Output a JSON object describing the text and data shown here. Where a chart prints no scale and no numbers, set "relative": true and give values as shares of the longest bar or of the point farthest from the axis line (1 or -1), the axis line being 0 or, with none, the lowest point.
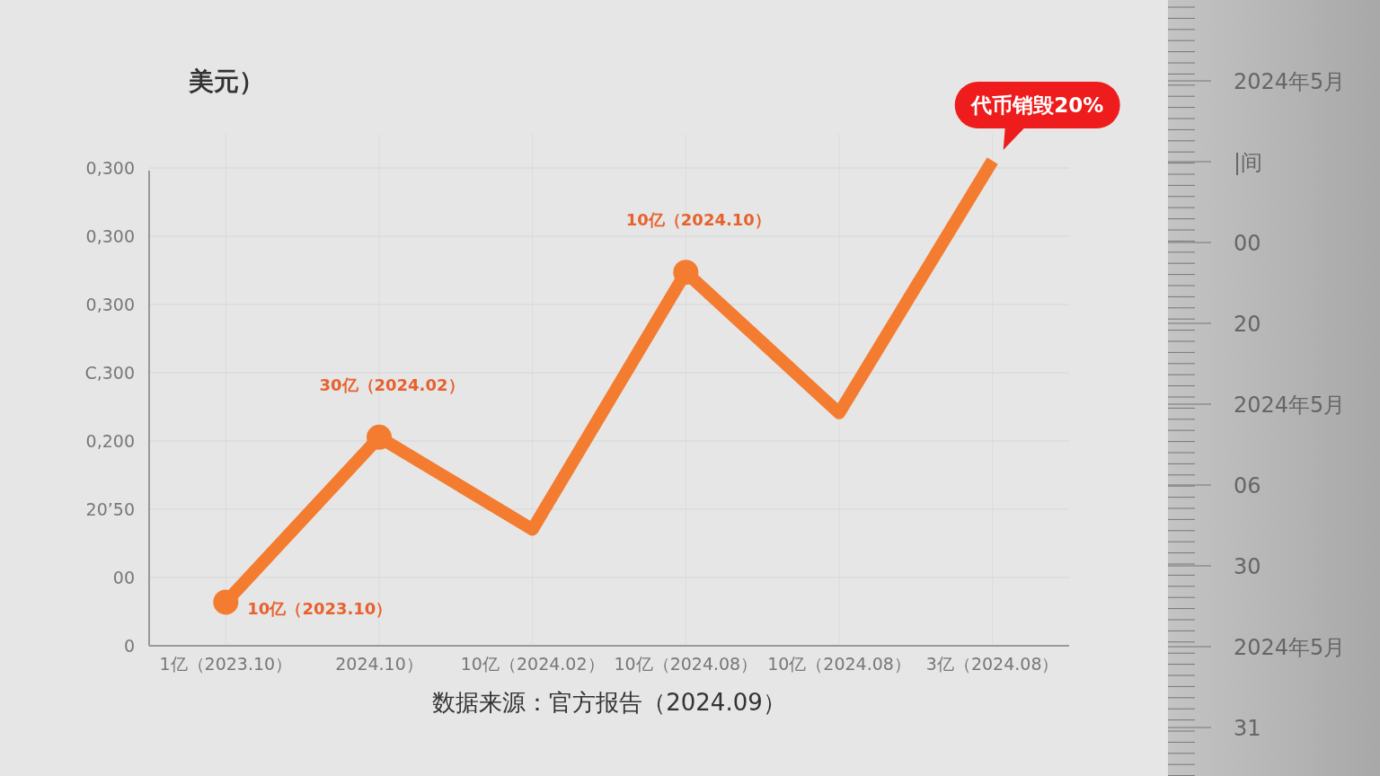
{
  "chart_data": {
    "type": "line",
    "title": "美元）",
    "relative": true,
    "categories": [
      "1亿（2023.10）",
      "2024.10）",
      "10亿（2024.02）",
      "10亿（2024.08）",
      "10亿（2024.08）",
      "3亿（2024.08）"
    ],
    "grid": true,
    "series": [
      {
        "color": "#f47c30",
        "values": [
          0.09,
          0.43,
          0.24,
          0.77,
          0.48,
          1
        ]
      },
      {
        "type": "scatter",
        "color": "#f47c30",
        "marker": "circle",
        "values": [
          0.09,
          0.43,
          null,
          0.77,
          null,
          null
        ]
      }
    ],
    "annotations": [
      {
        "text": "10亿（2023.10）",
        "x": "1亿（2023.10）",
        "y": 0.09
      },
      {
        "text": "30亿（2024.02）",
        "x": "2024.10）",
        "y": 0.43
      },
      {
        "text": "10亿（2024.10）",
        "x": "10亿（2024.08）",
        "y": 0.77
      },
      {
        "text": "代币销毁20%",
        "x": "3亿（2024.08）",
        "y": 1
      },
      "数据来源：官方报告（2024.09）",
      "0",
      "00",
      "20’50",
      "0,200",
      "C,300",
      "0,300",
      "0,300",
      "0,300",
      "2024年5月",
      "|间",
      "00",
      "20",
      "2024年5月",
      "06",
      "30",
      "2024年5月",
      "31"
    ]
  }
}
